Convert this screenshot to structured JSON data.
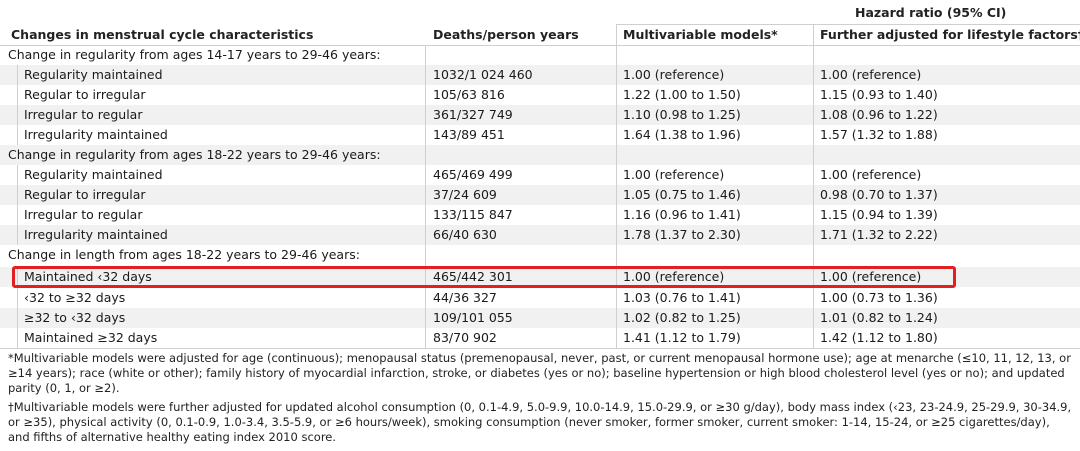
{
  "table": {
    "group_header": "Hazard ratio (95% CI)",
    "columns": [
      "Changes in menstrual cycle characteristics",
      "Deaths/person years",
      "Multivariable models*",
      "Further adjusted for lifestyle factors†"
    ],
    "sections": [
      {
        "title": "Change in regularity from ages 14-17 years to 29-46 years:",
        "rows": [
          {
            "label": "Regularity maintained",
            "deaths": "1032/1 024 460",
            "mv": "1.00 (reference)",
            "adj": "1.00 (reference)"
          },
          {
            "label": "Regular to irregular",
            "deaths": "105/63 816",
            "mv": "1.22 (1.00 to 1.50)",
            "adj": "1.15 (0.93 to 1.40)"
          },
          {
            "label": "Irregular to regular",
            "deaths": "361/327 749",
            "mv": "1.10 (0.98 to 1.25)",
            "adj": "1.08 (0.96 to 1.22)"
          },
          {
            "label": "Irregularity maintained",
            "deaths": "143/89 451",
            "mv": "1.64 (1.38 to 1.96)",
            "adj": "1.57 (1.32 to 1.88)"
          }
        ]
      },
      {
        "title": "Change in regularity from ages 18-22 years to 29-46 years:",
        "rows": [
          {
            "label": "Regularity maintained",
            "deaths": "465/469 499",
            "mv": "1.00 (reference)",
            "adj": "1.00 (reference)"
          },
          {
            "label": "Regular to irregular",
            "deaths": "37/24 609",
            "mv": "1.05 (0.75 to 1.46)",
            "adj": "0.98 (0.70 to 1.37)"
          },
          {
            "label": "Irregular to regular",
            "deaths": "133/115 847",
            "mv": "1.16 (0.96 to 1.41)",
            "adj": "1.15 (0.94 to 1.39)"
          },
          {
            "label": "Irregularity maintained",
            "deaths": "66/40 630",
            "mv": "1.78 (1.37 to 2.30)",
            "adj": "1.71 (1.32 to 2.22)"
          }
        ]
      },
      {
        "title": "Change in length from ages 18-22 years to 29-46 years:",
        "rows": [
          {
            "label": "Maintained ‹32 days",
            "deaths": "465/442 301",
            "mv": "1.00 (reference)",
            "adj": "1.00 (reference)"
          },
          {
            "label": "‹32 to ≥32 days",
            "deaths": "44/36 327",
            "mv": "1.03 (0.76 to 1.41)",
            "adj": "1.00 (0.73 to 1.36)"
          },
          {
            "label": "≥32 to ‹32 days",
            "deaths": "109/101 055",
            "mv": "1.02 (0.82 to 1.25)",
            "adj": "1.01 (0.82 to 1.24)"
          },
          {
            "label": "Maintained ≥32 days",
            "deaths": "83/70 902",
            "mv": "1.41 (1.12 to 1.79)",
            "adj": "1.42 (1.12 to 1.80)"
          }
        ]
      }
    ]
  },
  "footnotes": [
    "*Multivariable models were adjusted for age (continuous); menopausal status (premenopausal, never, past, or current menopausal hormone use); age at menarche (≤10, 11, 12, 13, or ≥14 years); race (white or other); family history of myocardial infarction, stroke, or diabetes (yes or no); baseline hypertension or high blood cholesterol level (yes or no); and updated parity (0, 1, or ≥2).",
    "†Multivariable models were further adjusted for updated alcohol consumption (0, 0.1-4.9, 5.0-9.9, 10.0-14.9, 15.0-29.9, or ≥30 g/day), body mass index (‹23, 23-24.9, 25-29.9, 30-34.9, or ≥35), physical activity (0, 0.1-0.9, 1.0-3.4, 3.5-5.9, or ≥6 hours/week), smoking consumption (never smoker, former smoker, current smoker: 1-14, 15-24, or ≥25 cigarettes/day), and fifths of alternative healthy eating index 2010 score."
  ],
  "colors": {
    "highlight": "#e41f1f",
    "row_tint": "#f1f1f1",
    "rule": "#cfcfcf"
  }
}
